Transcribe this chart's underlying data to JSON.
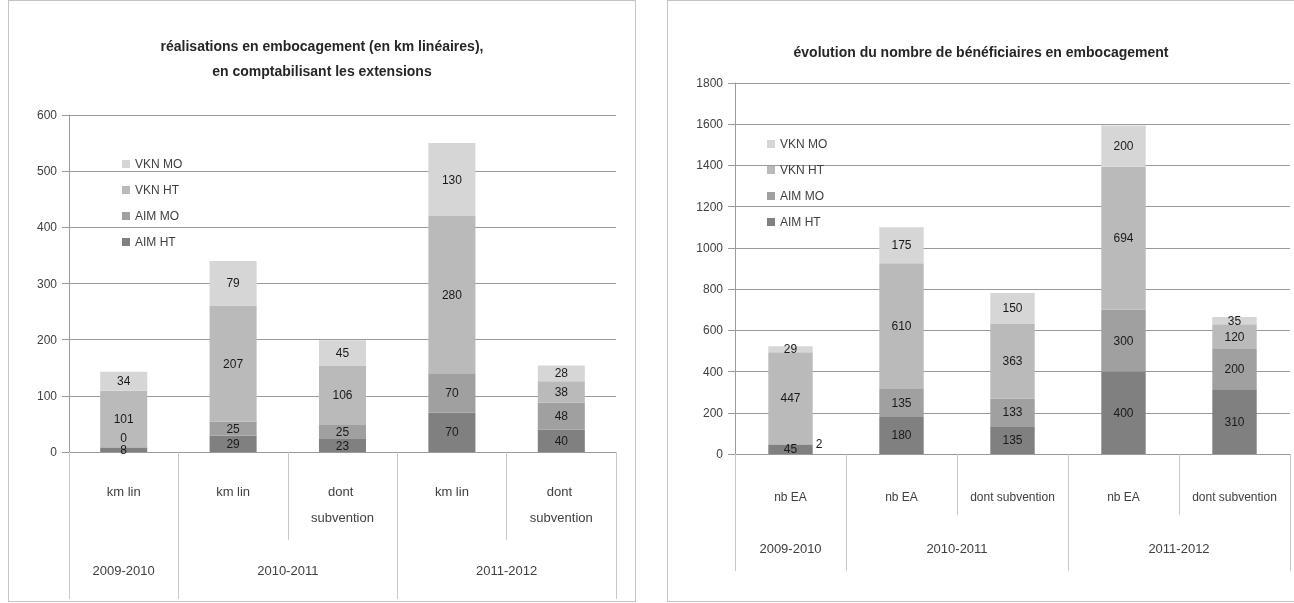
{
  "chart_data": [
    {
      "type": "bar",
      "title": "réalisations en embocagement (en km linéaires), en comptabilisant les extensions",
      "categories": [
        "km lin",
        "km lin",
        "dont subvention",
        "km lin",
        "dont subvention"
      ],
      "annotations": [
        "2009-2010",
        "2010-2011",
        "2011-2012"
      ],
      "series": [
        {
          "name": "AIM HT",
          "color": "#808080",
          "values": [
            8,
            29,
            23,
            70,
            40
          ]
        },
        {
          "name": "AIM MO",
          "color": "#a0a0a0",
          "values": [
            0,
            25,
            25,
            70,
            48
          ]
        },
        {
          "name": "VKN HT",
          "color": "#bababa",
          "values": [
            101,
            207,
            106,
            280,
            38
          ]
        },
        {
          "name": "VKN MO",
          "color": "#d6d6d6",
          "values": [
            34,
            79,
            45,
            130,
            28
          ]
        }
      ],
      "stacked": true,
      "data_labels": true,
      "ylim": [
        0,
        600
      ],
      "yticks": [
        0,
        100,
        200,
        300,
        400,
        500,
        600
      ],
      "grid": "y",
      "legend": "top left"
    },
    {
      "type": "bar",
      "title": "évolution du nombre de bénéficiaires en embocagement",
      "categories": [
        "nb EA",
        "nb EA",
        "dont subvention",
        "nb EA",
        "dont subvention"
      ],
      "annotations": [
        "2009-2010",
        "2010-2011",
        "2011-2012"
      ],
      "series": [
        {
          "name": "AIM HT",
          "color": "#808080",
          "values": [
            45,
            180,
            135,
            400,
            310
          ]
        },
        {
          "name": "AIM MO",
          "color": "#a0a0a0",
          "values": [
            2,
            135,
            133,
            300,
            200
          ]
        },
        {
          "name": "VKN HT",
          "color": "#bababa",
          "values": [
            447,
            610,
            363,
            694,
            120
          ]
        },
        {
          "name": "VKN MO",
          "color": "#d6d6d6",
          "values": [
            29,
            175,
            150,
            200,
            35
          ]
        }
      ],
      "stacked": true,
      "data_labels": true,
      "ylim": [
        0,
        1800
      ],
      "yticks": [
        0,
        200,
        400,
        600,
        800,
        1000,
        1200,
        1400,
        1600,
        1800
      ],
      "grid": "y",
      "legend": "top left"
    }
  ]
}
